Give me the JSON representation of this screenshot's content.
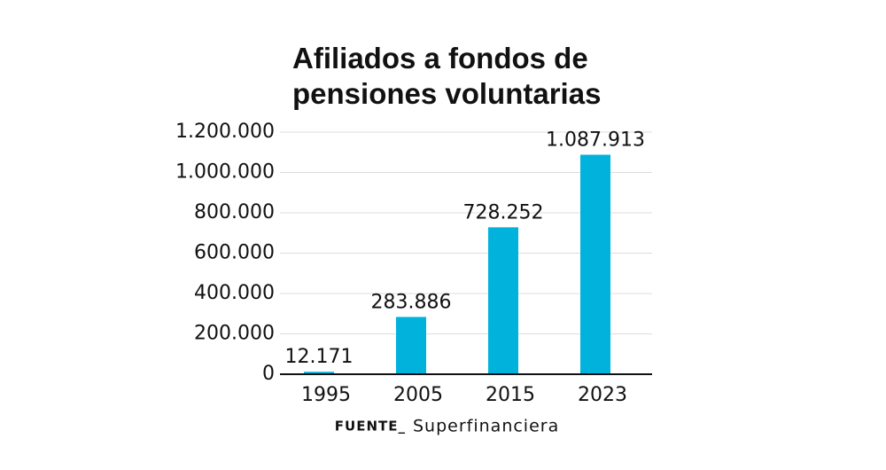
{
  "chart_data": {
    "type": "bar",
    "title": "Afiliados a fondos de pensiones voluntarias",
    "categories": [
      "1995",
      "2005",
      "2015",
      "2023"
    ],
    "values": [
      12171,
      283886,
      728252,
      1087913
    ],
    "value_labels": [
      "12.171",
      "283.886",
      "728.252",
      "1.087.913"
    ],
    "color": "#00b2dc",
    "ylim": [
      0,
      1200000
    ],
    "yticks": [
      0,
      {
        "value": 200000,
        "label": "200.000"
      },
      {
        "value": 400000,
        "label": "400.000"
      },
      {
        "value": 600000,
        "label": "600.000"
      },
      {
        "value": 800000,
        "label": "800.000"
      },
      {
        "value": 1000000,
        "label": "1.000.000"
      },
      {
        "value": 1200000,
        "label": "1.200.000"
      }
    ],
    "grid": true,
    "source_label": "FUENTE_",
    "source": "Superfinanciera"
  }
}
